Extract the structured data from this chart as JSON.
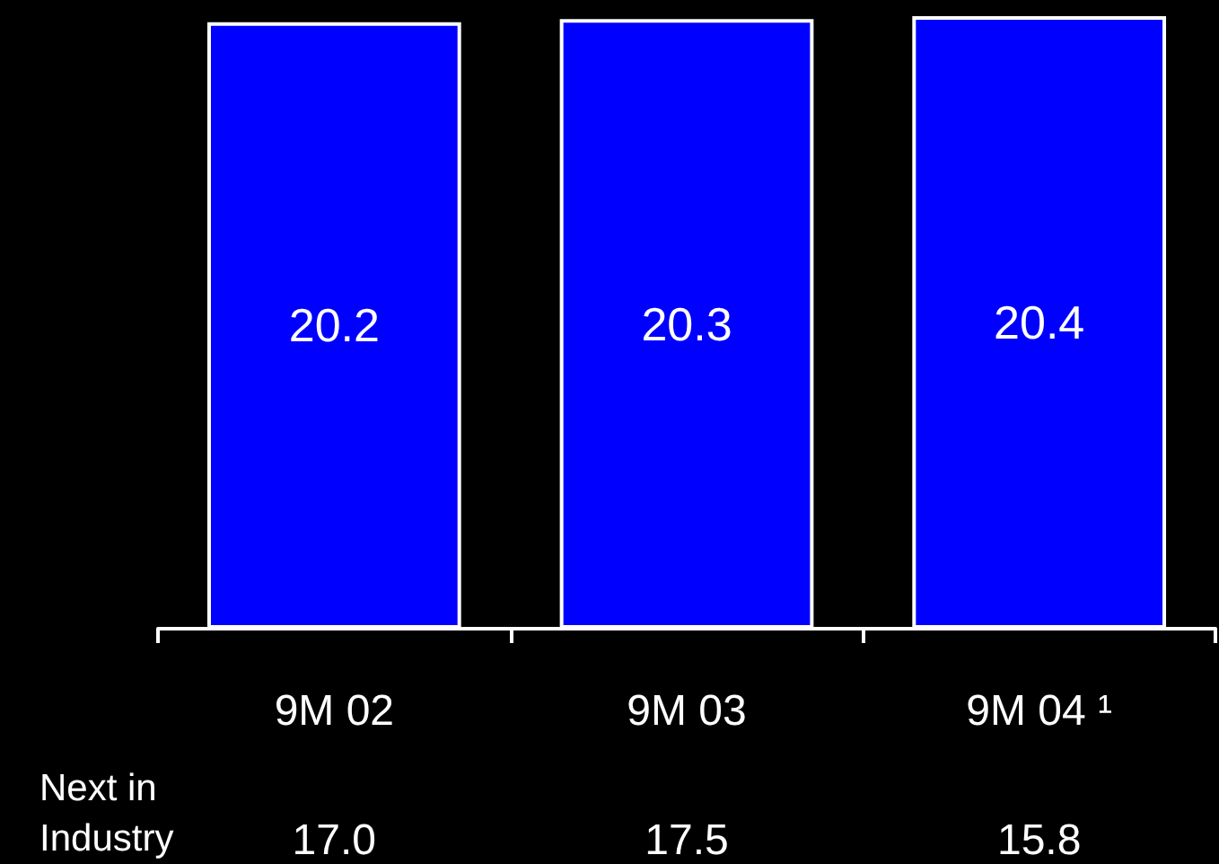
{
  "chart_data": {
    "type": "bar",
    "categories": [
      "9M 02",
      "9M 03",
      "9M 04 ¹"
    ],
    "values": [
      20.2,
      20.3,
      20.4
    ],
    "color": "#0000ff",
    "data_labels": true,
    "annotations": [
      "Next in Industry",
      "17.0",
      "17.5",
      "15.8"
    ]
  }
}
